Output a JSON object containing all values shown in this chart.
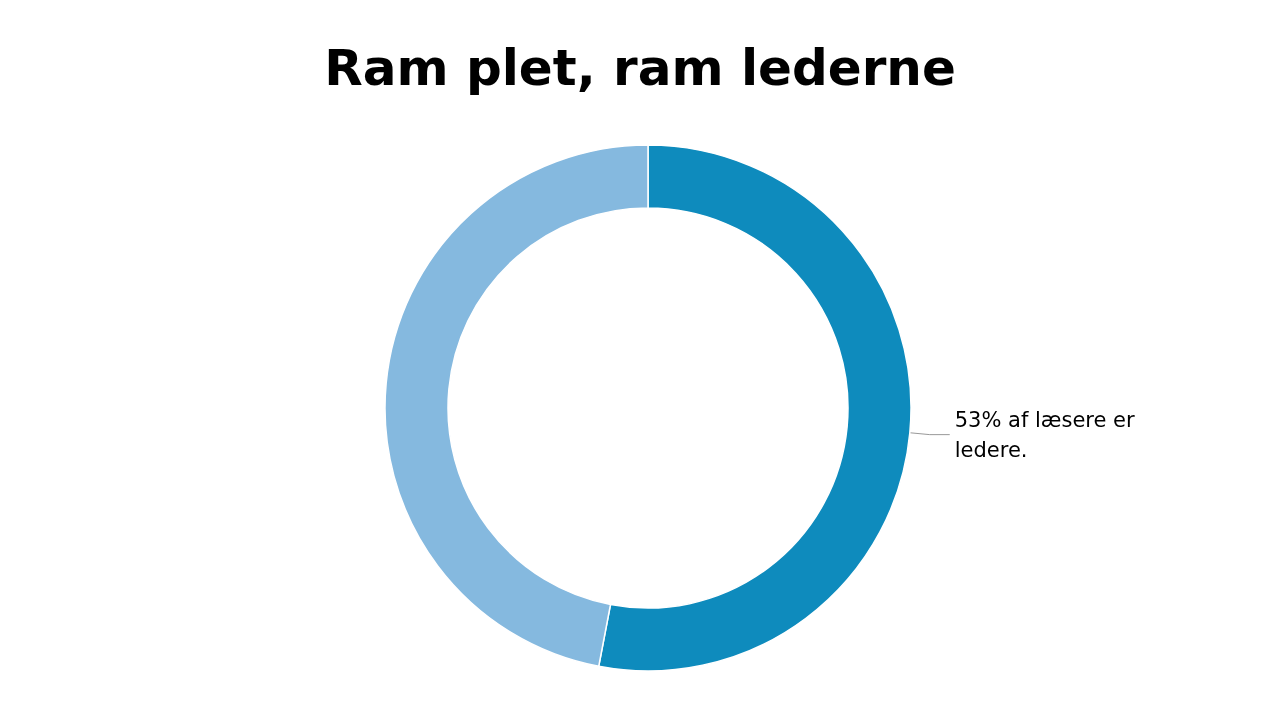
{
  "chart_data": {
    "type": "donut",
    "title": "Ram plet, ram lederne",
    "categories": [
      null,
      null
    ],
    "values": [
      53,
      47
    ],
    "colors": [
      "#0e8bbd",
      "#85b9df"
    ],
    "annotations": [
      "53% af læsere er ledere."
    ]
  }
}
